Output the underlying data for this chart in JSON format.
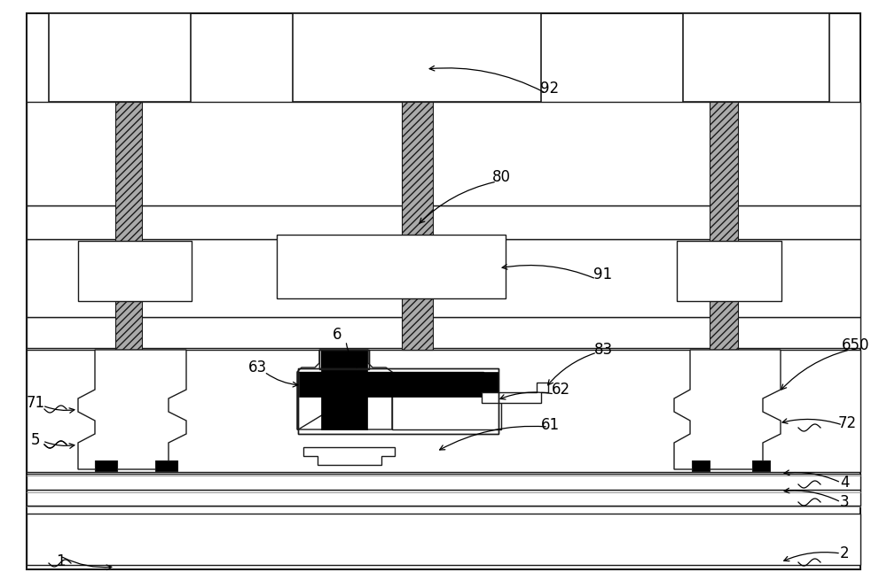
{
  "fig_width": 10.0,
  "fig_height": 6.55,
  "bg_color": "#ffffff",
  "lc": "#1a1a1a",
  "gray_fill": "#aaaaaa",
  "black": "#000000",
  "white": "#ffffff",
  "lw_main": 1.0,
  "lw_thick": 1.5
}
